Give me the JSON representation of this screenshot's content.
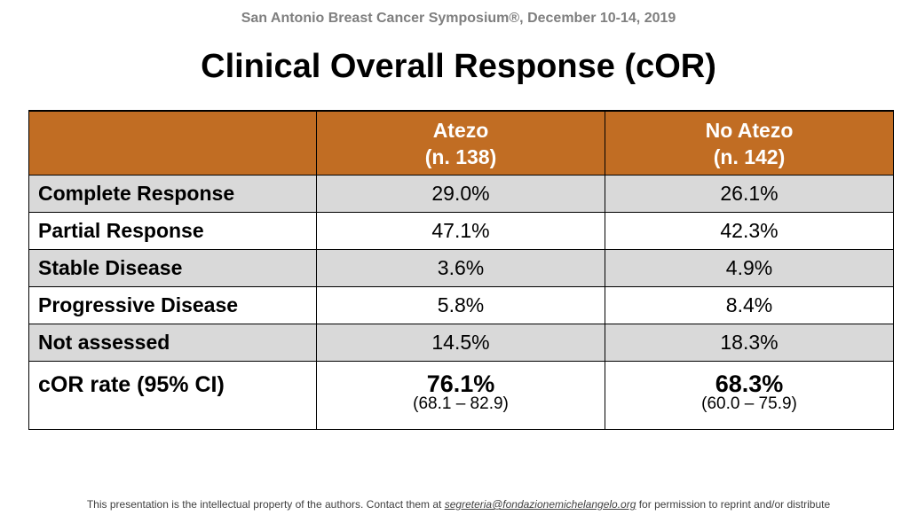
{
  "header": {
    "conference": "San Antonio Breast Cancer Symposium®, December 10-14, 2019",
    "title": "Clinical Overall Response (cOR)"
  },
  "table": {
    "columns": [
      {
        "name": "Atezo",
        "n": "(n. 138)"
      },
      {
        "name": "No Atezo",
        "n": "(n. 142)"
      }
    ],
    "rows": [
      {
        "label": "Complete Response",
        "values": [
          "29.0%",
          "26.1%"
        ]
      },
      {
        "label": "Partial Response",
        "values": [
          "47.1%",
          "42.3%"
        ]
      },
      {
        "label": "Stable Disease",
        "values": [
          "3.6%",
          "4.9%"
        ]
      },
      {
        "label": "Progressive Disease",
        "values": [
          "5.8%",
          "8.4%"
        ]
      },
      {
        "label": "Not assessed",
        "values": [
          "14.5%",
          "18.3%"
        ]
      }
    ],
    "rate_row": {
      "label": "cOR rate (95% CI)",
      "values": [
        {
          "main": "76.1%",
          "ci": "(68.1 – 82.9)"
        },
        {
          "main": "68.3%",
          "ci": "(60.0 – 75.9)"
        }
      ]
    }
  },
  "footer": {
    "text_before": "This presentation is the intellectual property of the authors. Contact them at ",
    "email": "segreteria@fondazionemichelangelo.org",
    "text_after": " for permission to reprint and/or distribute"
  },
  "colors": {
    "header_bg": "#c16d23",
    "shaded_row": "#d9d9d9",
    "conference_text": "#7f7f7f"
  }
}
